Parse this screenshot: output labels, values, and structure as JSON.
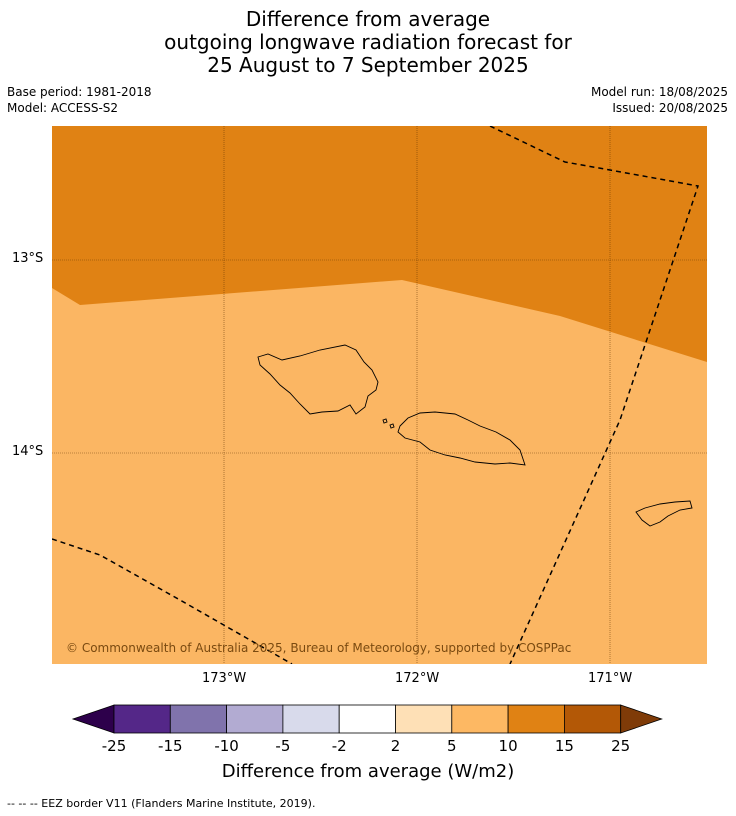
{
  "title": {
    "line1": "Difference from average",
    "line2": "outgoing longwave radiation forecast for",
    "line3": "25 August to 7 September 2025"
  },
  "meta": {
    "base_period": "Base period: 1981-2018",
    "model": "Model: ACCESS-S2",
    "model_run": "Model run: 18/08/2025",
    "issued": "Issued: 20/08/2025"
  },
  "map": {
    "latitude_labels": [
      "13°S",
      "14°S"
    ],
    "longitude_labels": [
      "173°W",
      "172°W",
      "171°W"
    ],
    "copyright": "© Commonwealth of Australia 2025, Bureau of Meteorology, supported by COSPPac",
    "colors": {
      "class_5_10": "#fbb663",
      "class_10_15": "#e08214",
      "coastline": "#000000"
    }
  },
  "colorbar": {
    "tick_labels": [
      "-25",
      "-15",
      "-10",
      "-5",
      "-2",
      "2",
      "5",
      "10",
      "15",
      "25"
    ],
    "colors": [
      "#2d004b",
      "#542788",
      "#8073ac",
      "#b2abd2",
      "#d8daeb",
      "#ffffff",
      "#fee0b6",
      "#fdb863",
      "#e08214",
      "#b35806",
      "#7f3b08"
    ],
    "label": "Difference from average (W/m2)"
  },
  "footnote": "-- -- -- EEZ border V11 (Flanders Marine Institute, 2019)."
}
